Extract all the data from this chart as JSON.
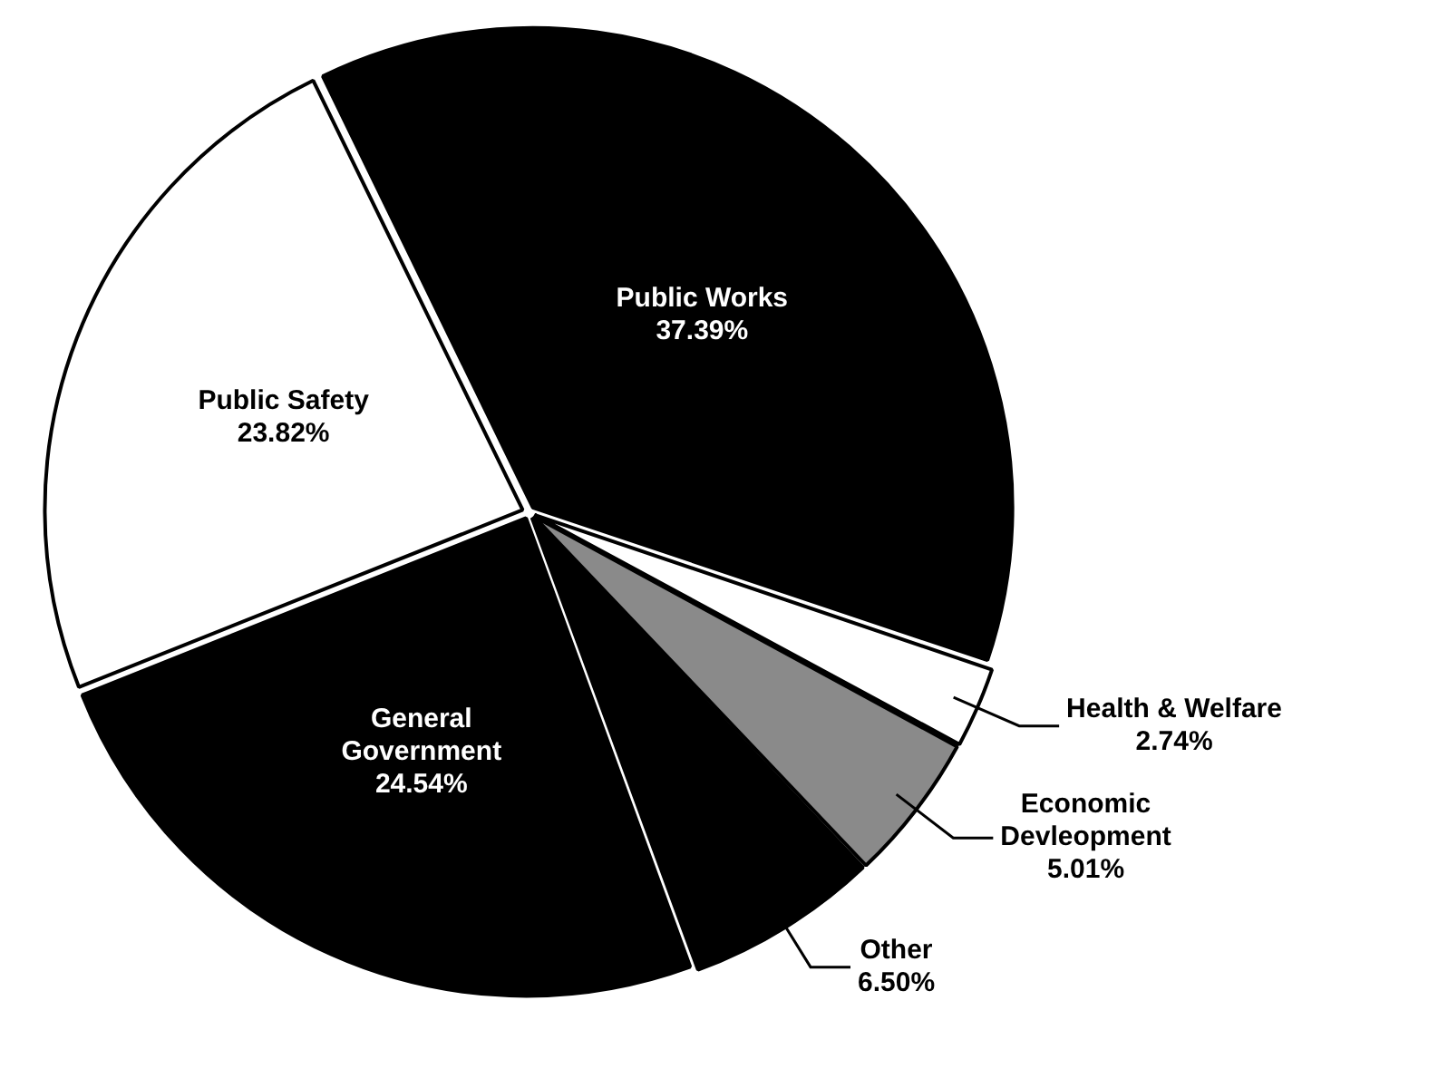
{
  "chart_data": {
    "type": "pie",
    "categories": [
      "Public Works",
      "Health & Welfare",
      "Economic Devleopment",
      "Other",
      "General Government",
      "Public Safety"
    ],
    "values": [
      37.39,
      2.74,
      5.01,
      6.5,
      24.54,
      23.82
    ],
    "colors": [
      "#000000",
      "#ffffff",
      "#8a8a8a",
      "#000000",
      "#000000",
      "#ffffff"
    ],
    "value_labels": [
      "37.39%",
      "2.74%",
      "5.01%",
      "6.50%",
      "24.54%",
      "23.82%"
    ],
    "legend": false
  }
}
